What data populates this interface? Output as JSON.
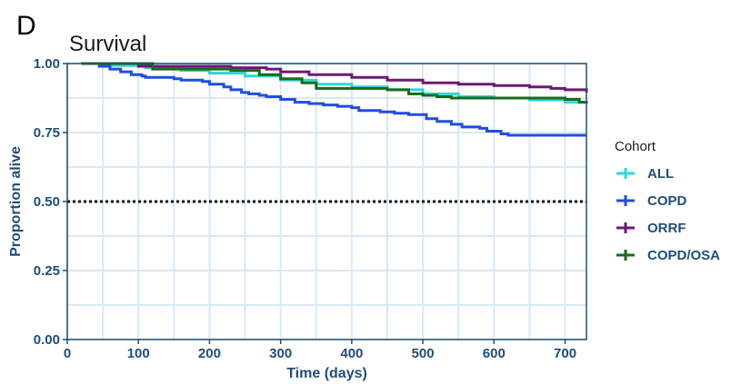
{
  "panel_label": "D",
  "chart_data": {
    "type": "line",
    "step": true,
    "title": "Survival",
    "xlabel": "Time (days)",
    "ylabel": "Proportion alive",
    "xlim": [
      0,
      730
    ],
    "ylim": [
      0,
      1
    ],
    "x_ticks": [
      0,
      100,
      200,
      300,
      400,
      500,
      600,
      700
    ],
    "y_ticks": [
      0,
      0.25,
      0.5,
      0.75,
      1
    ],
    "y_tick_labels": [
      "0.00",
      "0.25",
      "0.50",
      "0.75",
      "1.00"
    ],
    "x_minor_ticks": [
      50,
      150,
      250,
      350,
      450,
      550,
      650
    ],
    "y_minor_ticks": [
      0.125,
      0.375,
      0.625,
      0.875
    ],
    "grid": true,
    "reference_line": {
      "y": 0.5,
      "style": "dotted",
      "color": "#111111"
    },
    "legend": {
      "title": "Cohort",
      "position": "right"
    },
    "series": [
      {
        "name": "ALL",
        "color": "#33d6d6",
        "x": [
          20,
          60,
          110,
          160,
          200,
          250,
          300,
          350,
          400,
          450,
          500,
          550,
          600,
          650,
          700,
          730
        ],
        "y": [
          1.0,
          0.993,
          0.985,
          0.975,
          0.965,
          0.955,
          0.94,
          0.925,
          0.915,
          0.905,
          0.89,
          0.88,
          0.875,
          0.868,
          0.86,
          0.855
        ]
      },
      {
        "name": "COPD",
        "color": "#1f4fe0",
        "x": [
          20,
          45,
          60,
          75,
          90,
          105,
          110,
          150,
          160,
          190,
          200,
          220,
          230,
          245,
          255,
          270,
          280,
          300,
          320,
          340,
          360,
          380,
          400,
          410,
          440,
          460,
          480,
          505,
          520,
          540,
          555,
          580,
          590,
          610,
          620,
          650,
          700,
          730
        ],
        "y": [
          1.0,
          0.99,
          0.98,
          0.97,
          0.96,
          0.955,
          0.95,
          0.945,
          0.94,
          0.935,
          0.925,
          0.915,
          0.905,
          0.895,
          0.89,
          0.885,
          0.88,
          0.87,
          0.86,
          0.855,
          0.85,
          0.845,
          0.84,
          0.83,
          0.825,
          0.82,
          0.815,
          0.8,
          0.79,
          0.78,
          0.77,
          0.765,
          0.755,
          0.745,
          0.74,
          0.74,
          0.74,
          0.74
        ]
      },
      {
        "name": "ORRF",
        "color": "#6b1a75",
        "x": [
          20,
          100,
          230,
          280,
          300,
          340,
          400,
          450,
          500,
          550,
          600,
          650,
          680,
          700,
          730
        ],
        "y": [
          1.0,
          0.99,
          0.985,
          0.98,
          0.97,
          0.96,
          0.95,
          0.94,
          0.93,
          0.925,
          0.92,
          0.915,
          0.91,
          0.905,
          0.895
        ]
      },
      {
        "name": "COPD/OSA",
        "color": "#1a6b1a",
        "x": [
          20,
          120,
          230,
          270,
          300,
          330,
          350,
          400,
          450,
          480,
          500,
          520,
          540,
          560,
          600,
          650,
          700,
          720,
          730
        ],
        "y": [
          1.0,
          0.98,
          0.975,
          0.96,
          0.945,
          0.93,
          0.91,
          0.91,
          0.905,
          0.89,
          0.885,
          0.88,
          0.875,
          0.875,
          0.875,
          0.875,
          0.87,
          0.86,
          0.855
        ]
      }
    ]
  }
}
